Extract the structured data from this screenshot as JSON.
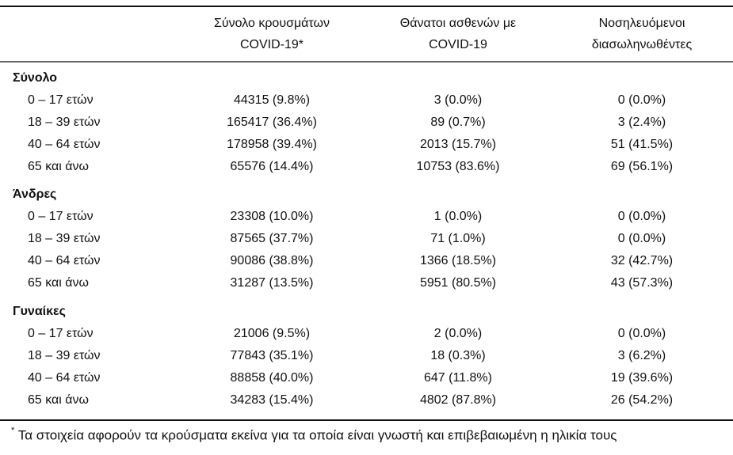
{
  "headers": [
    [
      "Σύνολο κρουσμάτων",
      "COVID-19*"
    ],
    [
      "Θάνατοι ασθενών με",
      "COVID-19"
    ],
    [
      "Νοσηλευόμενοι",
      "διασωληνωθέντες"
    ]
  ],
  "groups": [
    {
      "title": "Σύνολο",
      "rows": [
        {
          "label": "0 – 17 ετών",
          "values": [
            "44315 (9.8%)",
            "3 (0.0%)",
            "0 (0.0%)"
          ]
        },
        {
          "label": "18 – 39 ετών",
          "values": [
            "165417 (36.4%)",
            "89 (0.7%)",
            "3 (2.4%)"
          ]
        },
        {
          "label": "40 – 64 ετών",
          "values": [
            "178958 (39.4%)",
            "2013 (15.7%)",
            "51 (41.5%)"
          ]
        },
        {
          "label": "65 και άνω",
          "values": [
            "65576 (14.4%)",
            "10753 (83.6%)",
            "69 (56.1%)"
          ]
        }
      ]
    },
    {
      "title": "Άνδρες",
      "rows": [
        {
          "label": "0 – 17 ετών",
          "values": [
            "23308 (10.0%)",
            "1 (0.0%)",
            "0 (0.0%)"
          ]
        },
        {
          "label": "18 – 39 ετών",
          "values": [
            "87565 (37.7%)",
            "71 (1.0%)",
            "0 (0.0%)"
          ]
        },
        {
          "label": "40 – 64 ετών",
          "values": [
            "90086 (38.8%)",
            "1366 (18.5%)",
            "32 (42.7%)"
          ]
        },
        {
          "label": "65 και άνω",
          "values": [
            "31287 (13.5%)",
            "5951 (80.5%)",
            "43 (57.3%)"
          ]
        }
      ]
    },
    {
      "title": "Γυναίκες",
      "rows": [
        {
          "label": "0 – 17 ετών",
          "values": [
            "21006 (9.5%)",
            "2 (0.0%)",
            "0 (0.0%)"
          ]
        },
        {
          "label": "18 – 39 ετών",
          "values": [
            "77843 (35.1%)",
            "18 (0.3%)",
            "3 (6.2%)"
          ]
        },
        {
          "label": "40 – 64 ετών",
          "values": [
            "88858 (40.0%)",
            "647 (11.8%)",
            "19 (39.6%)"
          ]
        },
        {
          "label": "65 και άνω",
          "values": [
            "34283 (15.4%)",
            "4802 (87.8%)",
            "26 (54.2%)"
          ]
        }
      ]
    }
  ],
  "footnote": {
    "marker": "*",
    "text": "Τα στοιχεία αφορούν τα κρούσματα εκείνα για τα οποία είναι γνωστή και επιβεβαιωμένη η ηλικία τους"
  }
}
